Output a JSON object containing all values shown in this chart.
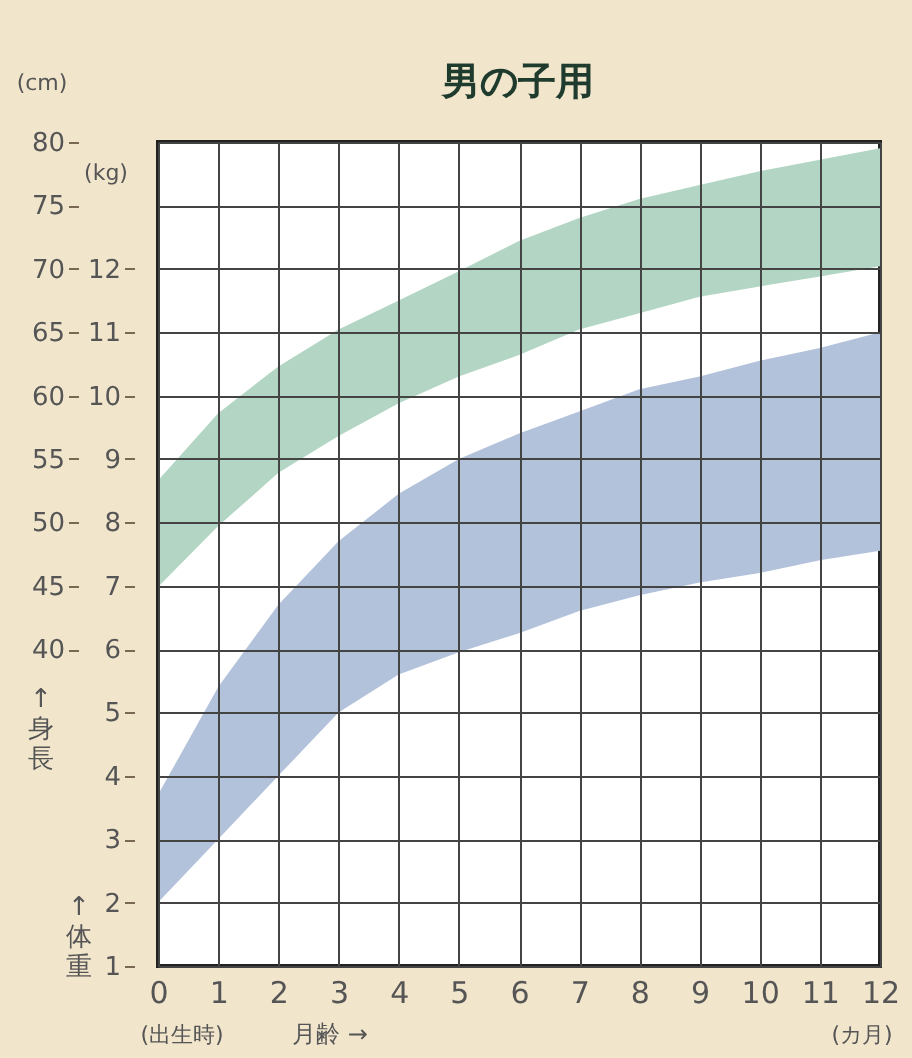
{
  "chart_data": {
    "type": "area",
    "title": "男の子用",
    "xlabel": "月齢 →",
    "ylabel": "↑身長",
    "y2label": "↑体重",
    "annotations": [
      "(cm)",
      "(kg)",
      "(出生時)",
      "(カ月)"
    ],
    "x": [
      0,
      1,
      2,
      3,
      4,
      5,
      6,
      7,
      8,
      9,
      10,
      11,
      12
    ],
    "xlim": [
      0,
      12
    ],
    "xticks": [
      0,
      1,
      2,
      3,
      4,
      5,
      6,
      7,
      8,
      9,
      10,
      11,
      12
    ],
    "ylim": [
      15,
      80
    ],
    "yticks": [
      40,
      45,
      50,
      55,
      60,
      65,
      70,
      75,
      80
    ],
    "y2lim": [
      1,
      14
    ],
    "y2ticks": [
      1,
      2,
      3,
      4,
      5,
      6,
      7,
      8,
      9,
      10,
      11,
      12
    ],
    "grid": true,
    "series": [
      {
        "type": "area",
        "color": "#b3d6c4",
        "values": [
          null,
          null,
          null,
          null,
          null,
          null,
          null,
          null,
          null,
          null,
          null,
          null,
          null
        ],
        "upper": [
          53.3,
          58.6,
          62.3,
          65.2,
          67.5,
          69.8,
          72.2,
          74.0,
          75.5,
          76.6,
          77.7,
          78.6,
          79.5
        ],
        "lower": [
          44.9,
          49.7,
          53.9,
          56.8,
          59.4,
          61.5,
          63.2,
          65.2,
          66.5,
          67.8,
          68.6,
          69.4,
          70.2
        ]
      },
      {
        "type": "area",
        "axis": "y2",
        "color": "#b3c2db",
        "values": [
          null,
          null,
          null,
          null,
          null,
          null,
          null,
          null,
          null,
          null,
          null,
          null,
          null
        ],
        "upper": [
          3.7,
          5.4,
          6.7,
          7.7,
          8.45,
          9.0,
          9.4,
          9.75,
          10.1,
          10.3,
          10.55,
          10.75,
          11.0
        ],
        "lower": [
          2.0,
          3.0,
          4.0,
          5.0,
          5.6,
          5.95,
          6.25,
          6.6,
          6.85,
          7.05,
          7.2,
          7.4,
          7.55
        ]
      }
    ]
  }
}
